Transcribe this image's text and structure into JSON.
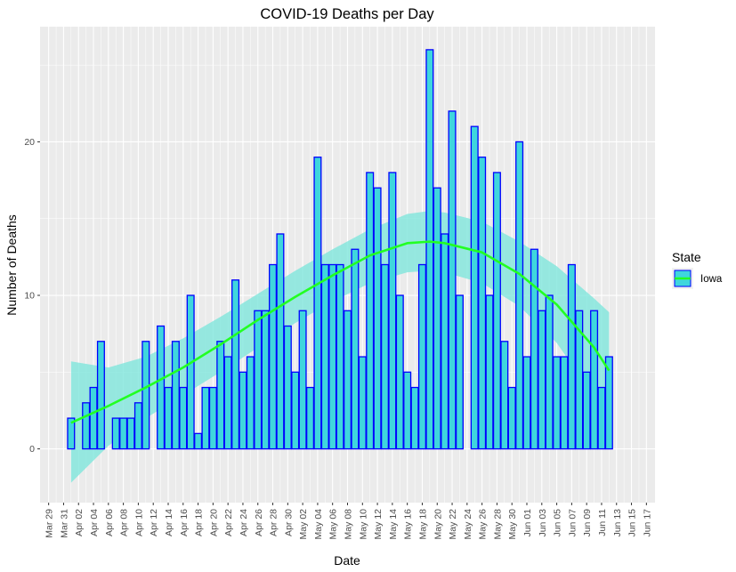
{
  "chart_data": {
    "type": "bar",
    "title": "COVID-19 Deaths per Day",
    "xlabel": "Date",
    "ylabel": "Number of Deaths",
    "ylim": [
      -3.5,
      27.5
    ],
    "xlim": [
      "2020-03-29",
      "2020-06-17"
    ],
    "y_ticks": [
      0,
      10,
      20
    ],
    "x_tick_labels": [
      "Mar 29",
      "Mar 31",
      "Apr 02",
      "Apr 04",
      "Apr 06",
      "Apr 08",
      "Apr 10",
      "Apr 12",
      "Apr 14",
      "Apr 16",
      "Apr 18",
      "Apr 20",
      "Apr 22",
      "Apr 24",
      "Apr 26",
      "Apr 28",
      "Apr 30",
      "May 02",
      "May 04",
      "May 06",
      "May 08",
      "May 10",
      "May 12",
      "May 14",
      "May 16",
      "May 18",
      "May 20",
      "May 22",
      "May 24",
      "May 26",
      "May 28",
      "May 30",
      "Jun 01",
      "Jun 03",
      "Jun 05",
      "Jun 07",
      "Jun 09",
      "Jun 11",
      "Jun 13",
      "Jun 15",
      "Jun 17"
    ],
    "grid": true,
    "legend": {
      "title": "State",
      "position": "right",
      "entries": [
        "Iowa"
      ]
    },
    "series": [
      {
        "name": "Iowa",
        "x": [
          "2020-04-01",
          "2020-04-02",
          "2020-04-03",
          "2020-04-04",
          "2020-04-05",
          "2020-04-06",
          "2020-04-07",
          "2020-04-08",
          "2020-04-09",
          "2020-04-10",
          "2020-04-11",
          "2020-04-12",
          "2020-04-13",
          "2020-04-14",
          "2020-04-15",
          "2020-04-16",
          "2020-04-17",
          "2020-04-18",
          "2020-04-19",
          "2020-04-20",
          "2020-04-21",
          "2020-04-22",
          "2020-04-23",
          "2020-04-24",
          "2020-04-25",
          "2020-04-26",
          "2020-04-27",
          "2020-04-28",
          "2020-04-29",
          "2020-04-30",
          "2020-05-01",
          "2020-05-02",
          "2020-05-03",
          "2020-05-04",
          "2020-05-05",
          "2020-05-06",
          "2020-05-07",
          "2020-05-08",
          "2020-05-09",
          "2020-05-10",
          "2020-05-11",
          "2020-05-12",
          "2020-05-13",
          "2020-05-14",
          "2020-05-15",
          "2020-05-16",
          "2020-05-17",
          "2020-05-18",
          "2020-05-19",
          "2020-05-20",
          "2020-05-21",
          "2020-05-22",
          "2020-05-23",
          "2020-05-24",
          "2020-05-25",
          "2020-05-26",
          "2020-05-27",
          "2020-05-28",
          "2020-05-29",
          "2020-05-30",
          "2020-05-31",
          "2020-06-01",
          "2020-06-02",
          "2020-06-03",
          "2020-06-04",
          "2020-06-05",
          "2020-06-06",
          "2020-06-07",
          "2020-06-08",
          "2020-06-09",
          "2020-06-10",
          "2020-06-11",
          "2020-06-12"
        ],
        "values": [
          2,
          0,
          3,
          4,
          7,
          0,
          2,
          2,
          2,
          3,
          7,
          0,
          8,
          4,
          7,
          4,
          10,
          1,
          4,
          4,
          7,
          6,
          11,
          5,
          6,
          9,
          9,
          12,
          14,
          8,
          5,
          9,
          4,
          19,
          12,
          12,
          12,
          9,
          13,
          6,
          18,
          17,
          12,
          18,
          10,
          5,
          4,
          12,
          26,
          17,
          14,
          22,
          10,
          0,
          21,
          19,
          10,
          18,
          7,
          4,
          20,
          6,
          13,
          9,
          10,
          6,
          6,
          12,
          9,
          5,
          9,
          4,
          6
        ],
        "fill_color": "#3fd6dd",
        "outline_color": "#0000ff"
      }
    ],
    "smooth": {
      "color": "#22ff22",
      "band_color": "#7fe6dc",
      "x": [
        "2020-04-01",
        "2020-04-06",
        "2020-04-11",
        "2020-04-16",
        "2020-04-21",
        "2020-04-26",
        "2020-05-01",
        "2020-05-06",
        "2020-05-11",
        "2020-05-16",
        "2020-05-19",
        "2020-05-21",
        "2020-05-26",
        "2020-05-31",
        "2020-06-05",
        "2020-06-10",
        "2020-06-12"
      ],
      "fit": [
        1.7,
        2.8,
        4.0,
        5.3,
        6.8,
        8.4,
        9.9,
        11.3,
        12.6,
        13.4,
        13.5,
        13.4,
        12.8,
        11.4,
        9.4,
        6.6,
        5.1
      ],
      "upper": [
        5.7,
        5.3,
        6.0,
        7.2,
        8.6,
        10.1,
        11.6,
        13.0,
        14.3,
        15.3,
        15.5,
        15.4,
        14.8,
        13.5,
        11.9,
        9.8,
        8.9
      ],
      "lower": [
        -2.2,
        0.2,
        2.0,
        3.5,
        5.0,
        6.6,
        8.2,
        9.6,
        10.8,
        11.5,
        11.6,
        11.5,
        10.8,
        9.3,
        6.9,
        3.4,
        1.3
      ]
    }
  }
}
